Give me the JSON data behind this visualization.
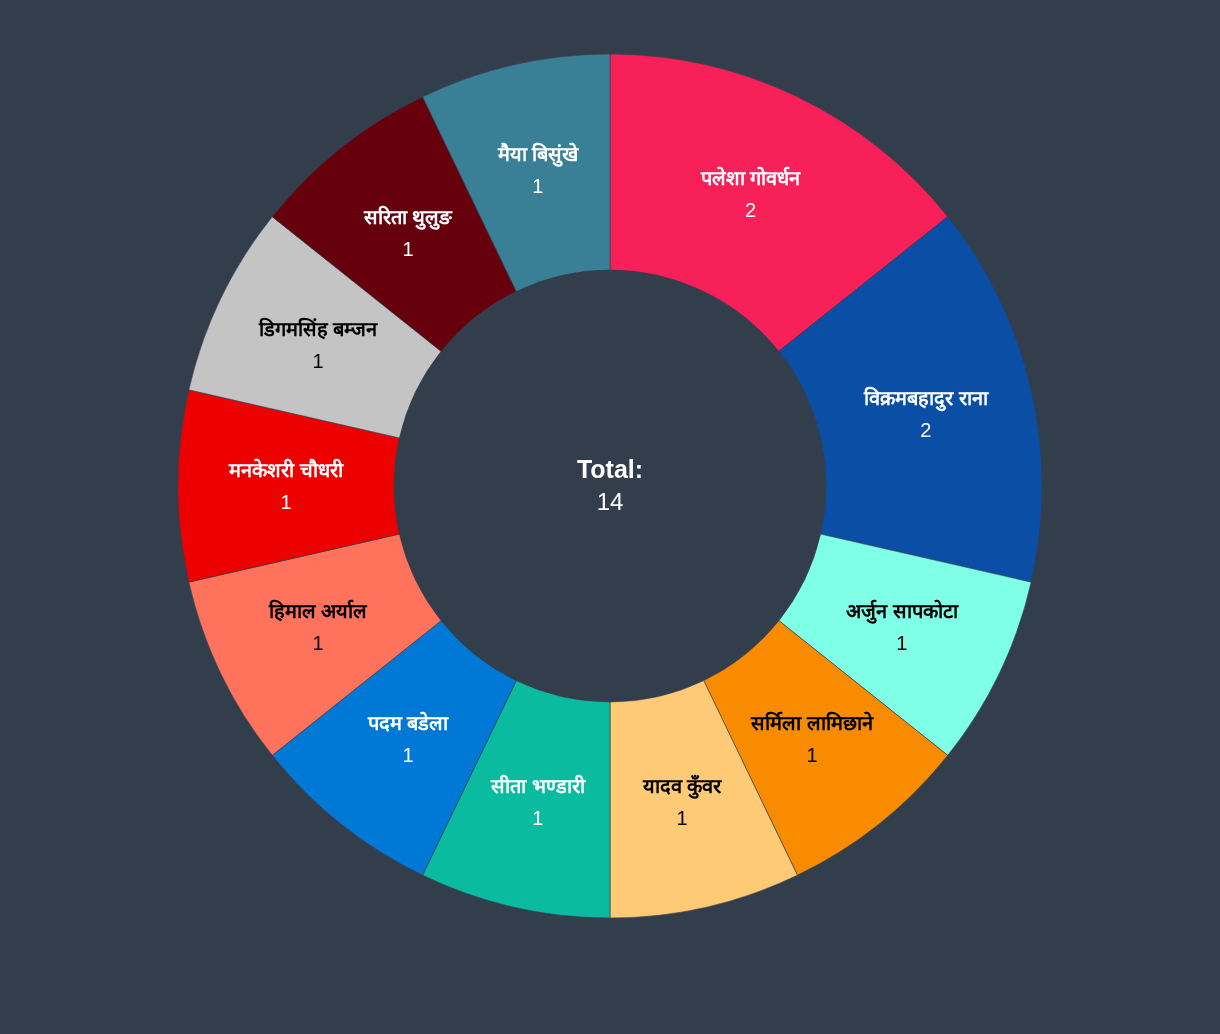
{
  "chart_data": {
    "type": "donut",
    "categories": [
      "पलेशा गोवर्धन",
      "विक्रमबहादुर राना",
      "अर्जुन सापकोटा",
      "सर्मिला लामिछाने",
      "यादव कुँवर",
      "सीता भण्डारी",
      "पदम बडेला",
      "हिमाल अर्याल",
      "मनकेशरी चौधरी",
      "डिगमसिंह बम्जन",
      "सरिता थुलुङ",
      "मैया बिसुंखे"
    ],
    "values": [
      2,
      2,
      1,
      1,
      1,
      1,
      1,
      1,
      1,
      1,
      1,
      1
    ],
    "colors": [
      "#f72059",
      "#0a4ea6",
      "#7fffe6",
      "#f98b00",
      "#ffca76",
      "#0bbba0",
      "#0078d6",
      "#ff735c",
      "#ec0000",
      "#c4c4c4",
      "#67000d",
      "#397f96"
    ],
    "data_labels": true,
    "annotations": [
      "Total:",
      "14"
    ]
  }
}
